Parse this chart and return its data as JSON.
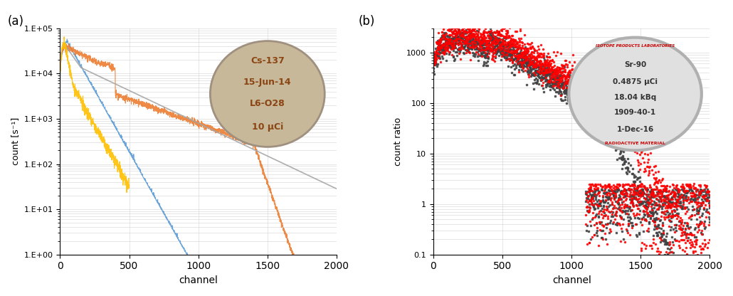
{
  "fig_width": 10.3,
  "fig_height": 4.16,
  "dpi": 100,
  "panel_a": {
    "label": "(a)",
    "ylabel": "count [s⁻¹]",
    "xlabel": "channel",
    "xlim": [
      0,
      2000
    ],
    "ylim_log": [
      1.0,
      100000.0
    ],
    "xticks": [
      0,
      500,
      1000,
      1500,
      2000
    ],
    "yticks_log": [
      1.0,
      10,
      100,
      1000,
      10000,
      100000
    ],
    "ytick_labels": [
      "1.E+00",
      "1.E+01",
      "1.E+02",
      "1.E+03",
      "1.E+04",
      "1.E+05"
    ],
    "colors": {
      "blue": "#5b9bd5",
      "orange": "#ed7d31",
      "gray": "#a5a5a5",
      "yellow": "#ffc000"
    },
    "image_text": [
      "Cs-137",
      "15-Jun-14",
      "L6-O28",
      "10 μCi"
    ],
    "image_bg": "#d4c9b0"
  },
  "panel_b": {
    "label": "(b)",
    "ylabel": "count ratio",
    "xlabel": "channel",
    "xlim": [
      0,
      2000
    ],
    "ylim_log": [
      0.1,
      3000
    ],
    "xticks": [
      0,
      500,
      1000,
      1500,
      2000
    ],
    "yticks_log": [
      0.1,
      1,
      10,
      100,
      1000
    ],
    "ytick_labels": [
      "0.1",
      "1",
      "10",
      "100",
      "1000"
    ],
    "colors": {
      "red": "#ff0000",
      "dark": "#404040"
    },
    "image_text": [
      "Sr-90",
      "0.4875 μCi",
      "18.04 kBq",
      "1909-40-1",
      "1-Dec-16"
    ],
    "image_bg": "#e8e8e8"
  }
}
